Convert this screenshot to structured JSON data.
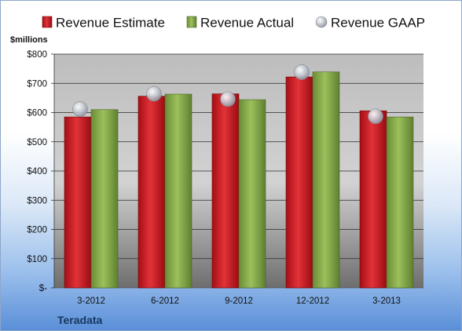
{
  "company": "Teradata",
  "colors": {
    "estimate": "#c8141c",
    "actual": "#7fa342",
    "gaap": "#b9bec8"
  },
  "chart_data": {
    "type": "bar",
    "unit_label": "$millions",
    "categories": [
      "3-2012",
      "6-2012",
      "9-2012",
      "12-2012",
      "3-2013"
    ],
    "series": [
      {
        "name": "Revenue Estimate",
        "type": "bar",
        "values": [
          585,
          656,
          664,
          722,
          606
        ]
      },
      {
        "name": "Revenue Actual",
        "type": "bar",
        "values": [
          610,
          663,
          644,
          739,
          585
        ]
      },
      {
        "name": "Revenue GAAP",
        "type": "marker",
        "values": [
          612,
          664,
          646,
          738,
          587
        ]
      }
    ],
    "ylim": [
      0,
      800
    ],
    "yticks": [
      0,
      100,
      200,
      300,
      400,
      500,
      600,
      700,
      800
    ],
    "ytick_labels": [
      "$-",
      "$100",
      "$200",
      "$300",
      "$400",
      "$500",
      "$600",
      "$700",
      "$800"
    ],
    "grid": true,
    "legend": "top"
  }
}
